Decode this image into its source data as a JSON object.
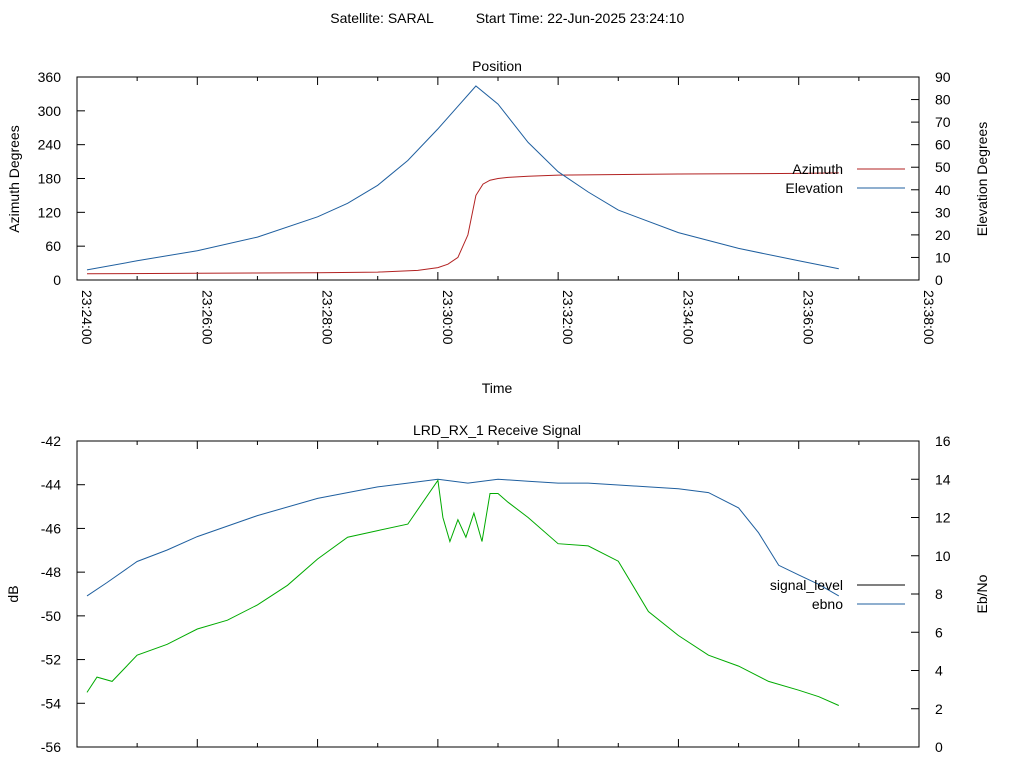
{
  "header": {
    "satellite": "Satellite: SARAL",
    "start_time": "Start Time: 22-Jun-2025 23:24:10"
  },
  "chart_data": [
    {
      "type": "line",
      "title": "Position",
      "xlabel": "Time",
      "ylabel": "Azimuth Degrees",
      "y2label": "Elevation Degrees",
      "xlim": [
        "23:24:00",
        "23:38:00"
      ],
      "ylim": [
        0,
        360
      ],
      "y2lim": [
        0,
        90
      ],
      "x_ticks": [
        "23:24:00",
        "23:26:00",
        "23:28:00",
        "23:30:00",
        "23:32:00",
        "23:34:00",
        "23:36:00",
        "23:38:00"
      ],
      "y_ticks": [
        0,
        60,
        120,
        180,
        240,
        300,
        360
      ],
      "y2_ticks": [
        0,
        10,
        20,
        30,
        40,
        50,
        60,
        70,
        80,
        90
      ],
      "legend_position": "right",
      "series": [
        {
          "name": "Azimuth",
          "axis": "y",
          "color": "#b22222",
          "x": [
            "23:24:10",
            "23:26:00",
            "23:28:00",
            "23:29:00",
            "23:29:40",
            "23:30:00",
            "23:30:10",
            "23:30:20",
            "23:30:30",
            "23:30:38",
            "23:30:45",
            "23:30:52",
            "23:31:00",
            "23:31:10",
            "23:31:30",
            "23:32:00",
            "23:34:00",
            "23:36:00",
            "23:36:40"
          ],
          "values": [
            11,
            12,
            13,
            14,
            17,
            22,
            28,
            40,
            80,
            150,
            170,
            177,
            180,
            182,
            184,
            186,
            188,
            189,
            190
          ]
        },
        {
          "name": "Elevation",
          "axis": "y2",
          "color": "#1f5f9f",
          "x": [
            "23:24:10",
            "23:25:00",
            "23:26:00",
            "23:27:00",
            "23:28:00",
            "23:28:30",
            "23:29:00",
            "23:29:30",
            "23:30:00",
            "23:30:20",
            "23:30:38",
            "23:31:00",
            "23:31:30",
            "23:32:00",
            "23:32:30",
            "23:33:00",
            "23:34:00",
            "23:35:00",
            "23:36:00",
            "23:36:40"
          ],
          "values": [
            4.5,
            8.5,
            13,
            19,
            28,
            34,
            42,
            53,
            67,
            77,
            86,
            78,
            61,
            48,
            39,
            31,
            21,
            14,
            8.5,
            5
          ]
        }
      ]
    },
    {
      "type": "line",
      "title": "LRD_RX_1 Receive Signal",
      "ylabel": "dB",
      "y2label": "Eb/No",
      "xlim": [
        "23:24:00",
        "23:38:00"
      ],
      "ylim": [
        -56,
        -42
      ],
      "y2lim": [
        0,
        16
      ],
      "y_ticks": [
        -56,
        -54,
        -52,
        -50,
        -48,
        -46,
        -44,
        -42
      ],
      "y2_ticks": [
        0,
        2,
        4,
        6,
        8,
        10,
        12,
        14,
        16
      ],
      "legend_position": "right",
      "series": [
        {
          "name": "signal_level",
          "axis": "y",
          "color": "#000000",
          "x": [],
          "values": []
        },
        {
          "name": "ebno",
          "axis": "y2",
          "color": "#1f5f9f",
          "x": [
            "23:24:10",
            "23:24:30",
            "23:25:00",
            "23:25:30",
            "23:26:00",
            "23:27:00",
            "23:28:00",
            "23:28:30",
            "23:29:00",
            "23:29:30",
            "23:30:00",
            "23:30:30",
            "23:31:00",
            "23:31:30",
            "23:32:00",
            "23:32:30",
            "23:33:00",
            "23:33:30",
            "23:34:00",
            "23:34:30",
            "23:35:00",
            "23:35:20",
            "23:35:40",
            "23:36:00",
            "23:36:20",
            "23:36:40"
          ],
          "values": [
            7.9,
            8.6,
            9.7,
            10.3,
            11.0,
            12.1,
            13.0,
            13.3,
            13.6,
            13.8,
            14.0,
            13.8,
            14.0,
            13.9,
            13.8,
            13.8,
            13.7,
            13.6,
            13.5,
            13.3,
            12.5,
            11.2,
            9.5,
            9.0,
            8.5,
            7.9
          ]
        },
        {
          "name": "",
          "axis": "y",
          "color": "#00aa00",
          "x": [
            "23:24:10",
            "23:24:20",
            "23:24:35",
            "23:25:00",
            "23:25:30",
            "23:26:00",
            "23:26:30",
            "23:27:00",
            "23:27:30",
            "23:28:00",
            "23:28:30",
            "23:29:00",
            "23:29:30",
            "23:30:00",
            "23:30:05",
            "23:30:12",
            "23:30:20",
            "23:30:28",
            "23:30:36",
            "23:30:44",
            "23:30:52",
            "23:31:00",
            "23:31:10",
            "23:31:30",
            "23:32:00",
            "23:32:30",
            "23:33:00",
            "23:33:30",
            "23:34:00",
            "23:34:30",
            "23:35:00",
            "23:35:30",
            "23:36:00",
            "23:36:20",
            "23:36:40"
          ],
          "values": [
            -53.5,
            -52.8,
            -53.0,
            -51.8,
            -51.3,
            -50.6,
            -50.2,
            -49.5,
            -48.6,
            -47.4,
            -46.4,
            -46.1,
            -45.8,
            -43.8,
            -45.5,
            -46.6,
            -45.6,
            -46.4,
            -45.3,
            -46.6,
            -44.4,
            -44.4,
            -44.8,
            -45.5,
            -46.7,
            -46.8,
            -47.5,
            -49.8,
            -50.9,
            -51.8,
            -52.3,
            -53.0,
            -53.4,
            -53.7,
            -54.1
          ]
        }
      ]
    }
  ]
}
